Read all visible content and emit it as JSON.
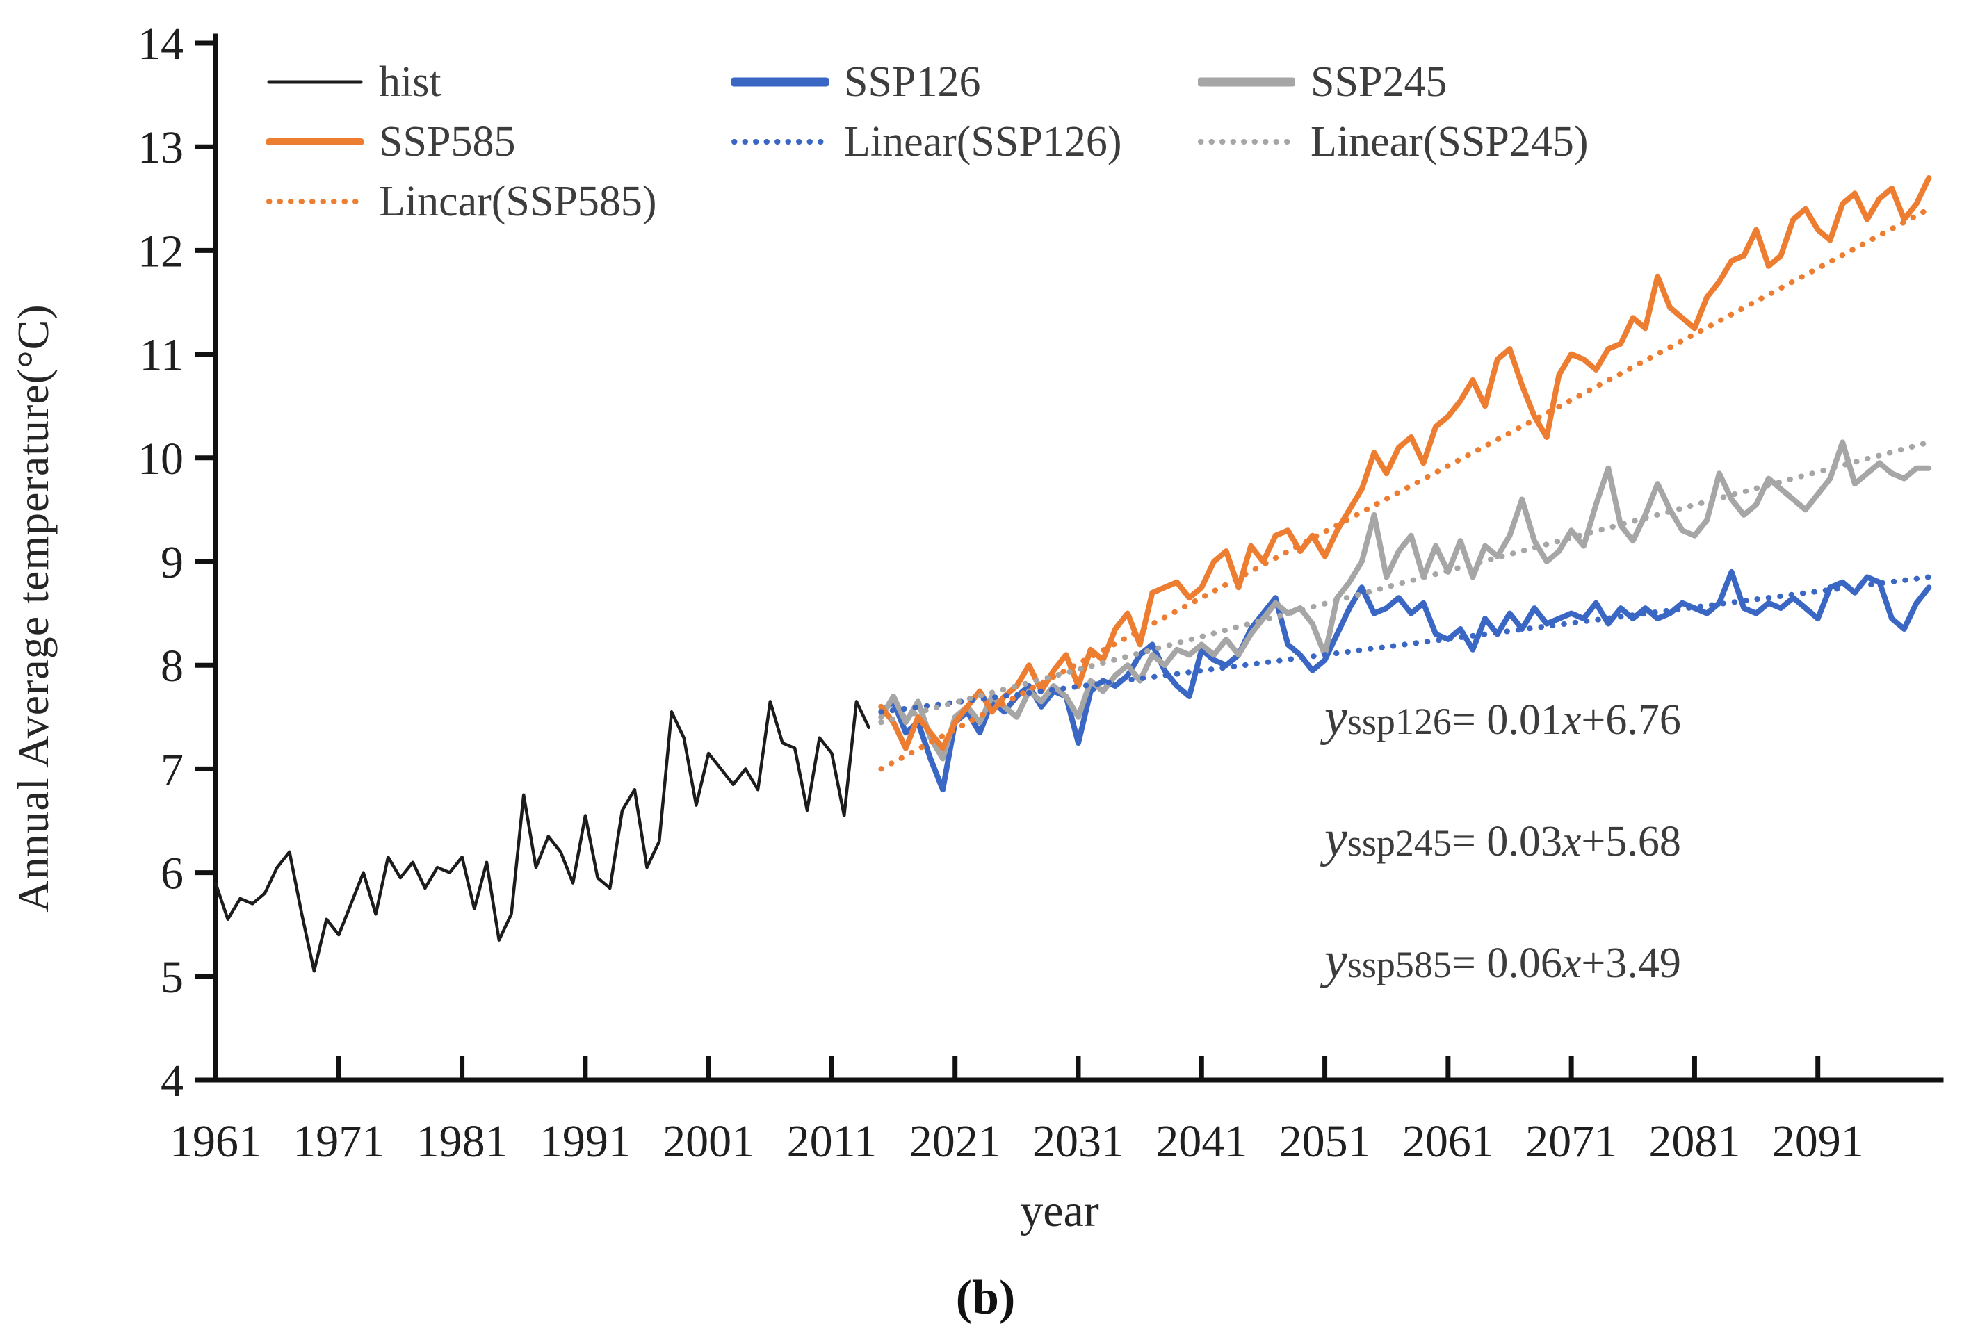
{
  "figure": {
    "caption": "(b)"
  },
  "legend": {
    "items": [
      {
        "label": "hist",
        "color": "#1c1c1c",
        "style": "solid",
        "weight": 5,
        "col": 0,
        "row": 0
      },
      {
        "label": "SSP126",
        "color": "#3a66c4",
        "style": "solid",
        "weight": 13,
        "col": 1,
        "row": 0
      },
      {
        "label": "SSP245",
        "color": "#a6a6a6",
        "style": "solid",
        "weight": 13,
        "col": 2,
        "row": 0
      },
      {
        "label": "SSP585",
        "color": "#ed7d31",
        "style": "solid",
        "weight": 10,
        "col": 0,
        "row": 1
      },
      {
        "label": "Linear(SSP126)",
        "color": "#3a66c4",
        "style": "dotted",
        "weight": 8,
        "col": 1,
        "row": 1
      },
      {
        "label": "Linear(SSP245)",
        "color": "#a6a6a6",
        "style": "dotted",
        "weight": 8,
        "col": 2,
        "row": 1
      },
      {
        "label": "Lincar(SSP585)",
        "color": "#ed7d31",
        "style": "dotted",
        "weight": 8,
        "col": 0,
        "row": 2
      }
    ]
  },
  "equations": [
    {
      "y": "y",
      "sub": "ssp126",
      "mid": "= 0.01",
      "x": "x",
      "tail": "+6.76"
    },
    {
      "y": "y",
      "sub": "ssp245",
      "mid": "= 0.03",
      "x": "x",
      "tail": "+5.68"
    },
    {
      "y": "y",
      "sub": "ssp585",
      "mid": "= 0.06",
      "x": "x",
      "tail": "+3.49"
    }
  ],
  "chart_data": {
    "type": "line",
    "title": "",
    "xlabel": "year",
    "ylabel": "Annual Average temperature(°C)",
    "xlim": [
      1961,
      2101
    ],
    "ylim": [
      4,
      14
    ],
    "x_ticks": [
      1961,
      1971,
      1981,
      1991,
      2001,
      2011,
      2021,
      2031,
      2041,
      2051,
      2061,
      2071,
      2081,
      2091
    ],
    "y_ticks": [
      4,
      5,
      6,
      7,
      8,
      9,
      10,
      11,
      12,
      13,
      14
    ],
    "grid": false,
    "legend_position": "top-left",
    "series": [
      {
        "name": "hist",
        "color": "#1c1c1c",
        "width": 4.5,
        "start_year": 1961,
        "values": [
          5.9,
          5.55,
          5.75,
          5.7,
          5.8,
          6.05,
          6.2,
          5.6,
          5.05,
          5.55,
          5.4,
          5.7,
          6.0,
          5.6,
          6.15,
          5.95,
          6.1,
          5.85,
          6.05,
          6.0,
          6.15,
          5.65,
          6.1,
          5.35,
          5.6,
          6.75,
          6.05,
          6.35,
          6.2,
          5.9,
          6.55,
          5.95,
          5.85,
          6.6,
          6.8,
          6.05,
          6.3,
          7.55,
          7.3,
          6.65,
          7.15,
          7.0,
          6.85,
          7.0,
          6.8,
          7.65,
          7.25,
          7.2,
          6.6,
          7.3,
          7.15,
          6.55,
          7.65,
          7.4
        ]
      },
      {
        "name": "SSP126",
        "color": "#3a66c4",
        "width": 8,
        "start_year": 2015,
        "values": [
          7.55,
          7.65,
          7.35,
          7.45,
          7.1,
          6.8,
          7.45,
          7.55,
          7.35,
          7.65,
          7.55,
          7.7,
          7.8,
          7.6,
          7.75,
          7.7,
          7.25,
          7.75,
          7.85,
          7.8,
          7.9,
          8.1,
          8.2,
          7.95,
          7.8,
          7.7,
          8.15,
          8.05,
          8.0,
          8.1,
          8.35,
          8.5,
          8.65,
          8.2,
          8.1,
          7.95,
          8.05,
          8.3,
          8.55,
          8.75,
          8.5,
          8.55,
          8.65,
          8.5,
          8.6,
          8.3,
          8.25,
          8.35,
          8.15,
          8.45,
          8.3,
          8.5,
          8.35,
          8.55,
          8.4,
          8.45,
          8.5,
          8.45,
          8.6,
          8.4,
          8.55,
          8.45,
          8.55,
          8.45,
          8.5,
          8.6,
          8.55,
          8.5,
          8.6,
          8.9,
          8.55,
          8.5,
          8.6,
          8.55,
          8.65,
          8.55,
          8.45,
          8.75,
          8.8,
          8.7,
          8.85,
          8.8,
          8.45,
          8.35,
          8.6,
          8.75
        ]
      },
      {
        "name": "SSP245",
        "color": "#a6a6a6",
        "width": 8,
        "start_year": 2015,
        "values": [
          7.5,
          7.7,
          7.45,
          7.65,
          7.3,
          7.1,
          7.5,
          7.6,
          7.45,
          7.7,
          7.6,
          7.5,
          7.75,
          7.65,
          7.8,
          7.7,
          7.5,
          7.85,
          7.75,
          7.9,
          8.0,
          7.85,
          8.1,
          8.0,
          8.15,
          8.1,
          8.2,
          8.1,
          8.25,
          8.1,
          8.3,
          8.45,
          8.6,
          8.5,
          8.55,
          8.4,
          8.1,
          8.65,
          8.8,
          9.0,
          9.45,
          8.85,
          9.1,
          9.25,
          8.85,
          9.15,
          8.9,
          9.2,
          8.85,
          9.15,
          9.05,
          9.25,
          9.6,
          9.2,
          9.0,
          9.1,
          9.3,
          9.15,
          9.55,
          9.9,
          9.35,
          9.2,
          9.45,
          9.75,
          9.5,
          9.3,
          9.25,
          9.4,
          9.85,
          9.6,
          9.45,
          9.55,
          9.8,
          9.7,
          9.6,
          9.5,
          9.65,
          9.8,
          10.15,
          9.75,
          9.85,
          9.95,
          9.85,
          9.8,
          9.9,
          9.9
        ]
      },
      {
        "name": "SSP585",
        "color": "#ed7d31",
        "width": 8,
        "start_year": 2015,
        "values": [
          7.6,
          7.45,
          7.2,
          7.5,
          7.35,
          7.2,
          7.45,
          7.6,
          7.75,
          7.55,
          7.7,
          7.8,
          8.0,
          7.75,
          7.95,
          8.1,
          7.8,
          8.15,
          8.05,
          8.35,
          8.5,
          8.2,
          8.7,
          8.75,
          8.8,
          8.65,
          8.75,
          9.0,
          9.1,
          8.75,
          9.15,
          9.0,
          9.25,
          9.3,
          9.1,
          9.25,
          9.05,
          9.3,
          9.5,
          9.7,
          10.05,
          9.85,
          10.1,
          10.2,
          9.95,
          10.3,
          10.4,
          10.55,
          10.75,
          10.5,
          10.95,
          11.05,
          10.7,
          10.4,
          10.2,
          10.8,
          11.0,
          10.95,
          10.85,
          11.05,
          11.1,
          11.35,
          11.25,
          11.75,
          11.45,
          11.35,
          11.25,
          11.55,
          11.7,
          11.9,
          11.95,
          12.2,
          11.85,
          11.95,
          12.3,
          12.4,
          12.2,
          12.1,
          12.45,
          12.55,
          12.3,
          12.5,
          12.6,
          12.3,
          12.45,
          12.7
        ]
      }
    ],
    "trendlines": [
      {
        "name": "Linear(SSP126)",
        "color": "#3a66c4",
        "equation": "y = 0.01x + 6.76",
        "x": [
          2015,
          2100
        ],
        "y": [
          7.55,
          8.85
        ]
      },
      {
        "name": "Linear(SSP245)",
        "color": "#a6a6a6",
        "equation": "y = 0.03x + 5.68",
        "x": [
          2015,
          2100
        ],
        "y": [
          7.45,
          10.15
        ]
      },
      {
        "name": "Lincar(SSP585)",
        "color": "#ed7d31",
        "equation": "y = 0.06x + 3.49",
        "x": [
          2015,
          2100
        ],
        "y": [
          7.0,
          12.4
        ]
      }
    ]
  }
}
